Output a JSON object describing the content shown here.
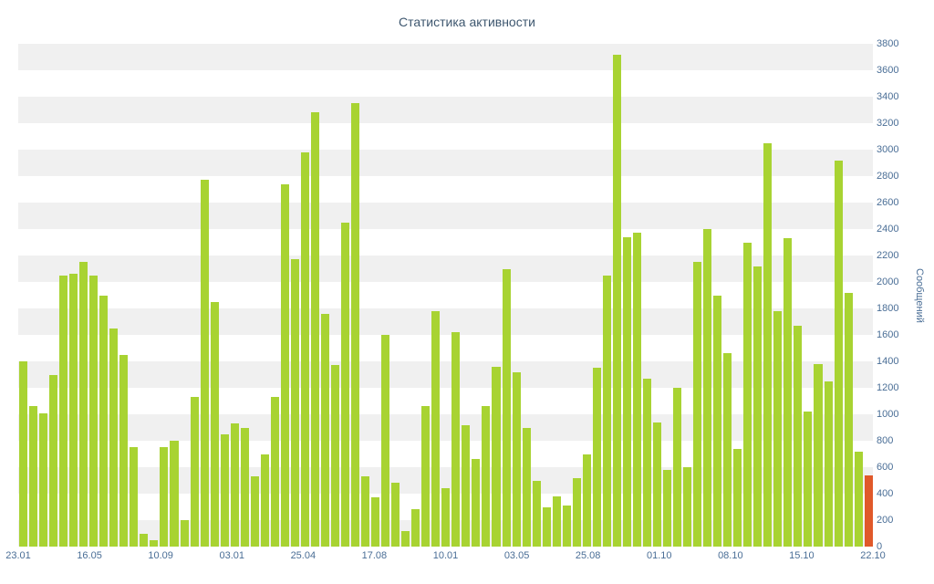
{
  "chart_data": {
    "type": "bar",
    "title": "Статистика активности",
    "ylabel": "Сообщений",
    "xlabel": "",
    "ylim": [
      0,
      3800
    ],
    "y_tick_step": 200,
    "y_ticks": [
      0,
      200,
      400,
      600,
      800,
      1000,
      1200,
      1400,
      1600,
      1800,
      2000,
      2200,
      2400,
      2600,
      2800,
      3000,
      3200,
      3400,
      3600,
      3800
    ],
    "x_labels": [
      "23.01",
      "16.05",
      "10.09",
      "03.01",
      "25.04",
      "17.08",
      "10.01",
      "03.05",
      "25.08",
      "01.10",
      "08.10",
      "15.10",
      "22.10"
    ],
    "values": [
      1400,
      1060,
      1010,
      1300,
      2050,
      2060,
      2150,
      2050,
      1900,
      1650,
      1450,
      750,
      100,
      50,
      750,
      800,
      200,
      1130,
      2770,
      1850,
      850,
      930,
      900,
      530,
      700,
      1130,
      2740,
      2170,
      2980,
      3280,
      1760,
      1370,
      2450,
      3350,
      530,
      370,
      1600,
      480,
      120,
      280,
      1060,
      1780,
      440,
      1620,
      920,
      660,
      1060,
      1360,
      2100,
      1320,
      900,
      500,
      300,
      380,
      310,
      520,
      700,
      1350,
      2050,
      3720,
      2340,
      2370,
      1270,
      940,
      580,
      1200,
      600,
      2150,
      2400,
      1900,
      1460,
      740,
      2300,
      2120,
      3050,
      1780,
      2330,
      1670,
      1020,
      1380,
      1250,
      2920,
      1920,
      720,
      540
    ],
    "highlight_index": 84,
    "legend": "none",
    "grid": "alternating-horizontal-bands",
    "colors": {
      "bar": "#a8d332",
      "highlight": "#e0592a",
      "stripe": "#f0f0f0",
      "plot_background": "#ffffff",
      "axis_text": "#4a6e96",
      "title_text": "#3e576f"
    }
  }
}
